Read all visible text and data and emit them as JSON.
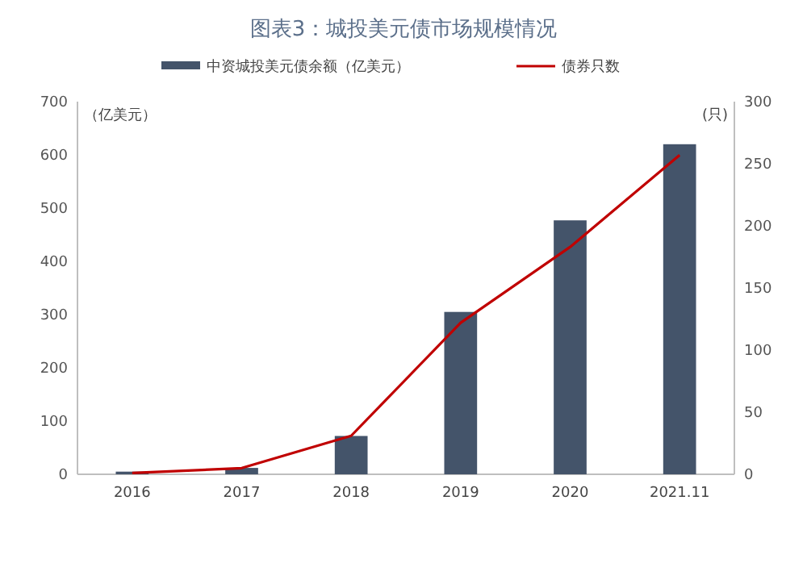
{
  "chart_data": {
    "type": "bar",
    "title": "图表3：城投美元债市场规模情况",
    "categories": [
      "2016",
      "2017",
      "2018",
      "2019",
      "2020",
      "2021.11"
    ],
    "series": [
      {
        "name": "中资城投美元债余额（亿美元）",
        "color": "#44546a",
        "values": [
          5,
          12,
          72,
          305,
          477,
          620
        ]
      },
      {
        "name": "债券只数",
        "type": "line",
        "axis": "y2",
        "color": "#c00000",
        "values": [
          1,
          5,
          31,
          122,
          183,
          257
        ]
      }
    ],
    "ylabel": "（亿美元）",
    "y2label": "(只)",
    "ylim": [
      0,
      700
    ],
    "yticks": [
      0,
      100,
      200,
      300,
      400,
      500,
      600,
      700
    ],
    "y2lim": [
      0,
      300
    ],
    "y2ticks": [
      0,
      50,
      100,
      150,
      200,
      250,
      300
    ],
    "legend": "top",
    "grid": false,
    "marker": "none",
    "line_style": "solid"
  }
}
